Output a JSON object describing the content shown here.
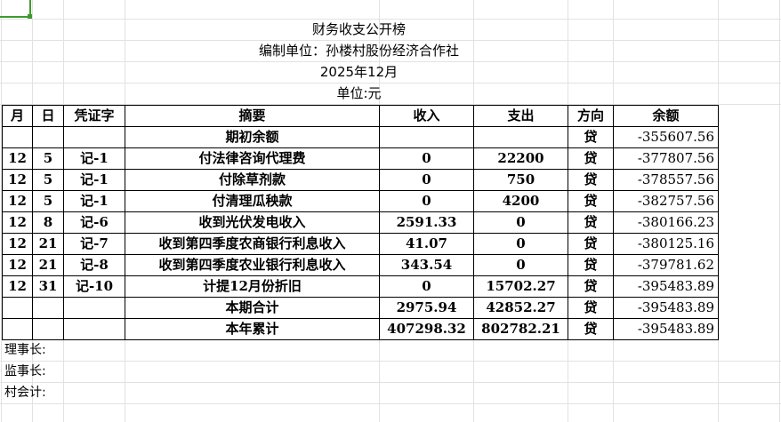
{
  "sheet": {
    "title": "财务收支公开榜",
    "org": "编制单位：孙楼村股份经济合作社",
    "period": "2025年12月",
    "unit": "单位:元",
    "headers": [
      "月",
      "日",
      "凭证字",
      "摘要",
      "收入",
      "支出",
      "方向",
      "余额"
    ],
    "rows": [
      [
        "",
        "",
        "",
        "期初余额",
        "",
        "",
        "贷",
        "-355607.56"
      ],
      [
        "12",
        "5",
        "记-1",
        "付法律咨询代理费",
        "0",
        "22200",
        "贷",
        "-377807.56"
      ],
      [
        "12",
        "5",
        "记-1",
        "付除草剂款",
        "0",
        "750",
        "贷",
        "-378557.56"
      ],
      [
        "12",
        "5",
        "记-1",
        "付清理瓜秧款",
        "0",
        "4200",
        "贷",
        "-382757.56"
      ],
      [
        "12",
        "8",
        "记-6",
        "收到光伏发电收入",
        "2591.33",
        "0",
        "贷",
        "-380166.23"
      ],
      [
        "12",
        "21",
        "记-7",
        "收到第四季度农商银行利息收入",
        "41.07",
        "0",
        "贷",
        "-380125.16"
      ],
      [
        "12",
        "21",
        "记-8",
        "收到第四季度农业银行利息收入",
        "343.54",
        "0",
        "贷",
        "-379781.62"
      ],
      [
        "12",
        "31",
        "记-10",
        "计提12月份折旧",
        "0",
        "15702.27",
        "贷",
        "-395483.89"
      ],
      [
        "",
        "",
        "",
        "本期合计",
        "2975.94",
        "42852.27",
        "贷",
        "-395483.89"
      ],
      [
        "",
        "",
        "",
        "本年累计",
        "407298.32",
        "802782.21",
        "贷",
        "-395483.89"
      ]
    ],
    "signatures": [
      "理事长:",
      "监事长:",
      "村会计:"
    ]
  }
}
